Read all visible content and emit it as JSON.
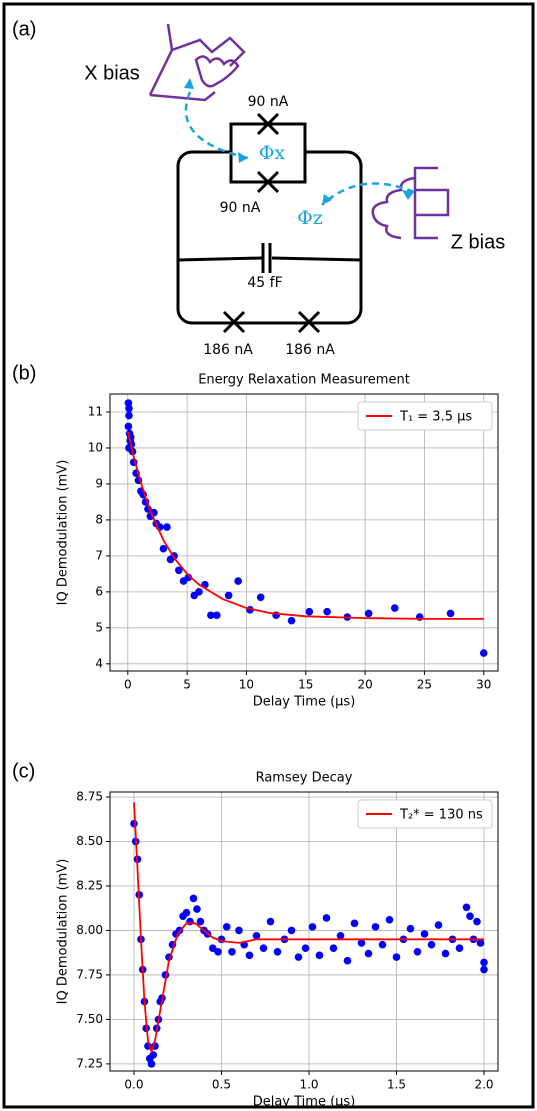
{
  "diagram": {
    "panel_label": "(a)",
    "x_bias": "X bias",
    "z_bias": "Z bias",
    "phi_x": "Φx",
    "phi_z": "Φz",
    "junction_top": "90 nA",
    "junction_bottom": "90 nA",
    "capacitor": "45 fF",
    "junction_left": "186 nA",
    "junction_right": "186 nA"
  },
  "chart_data": [
    {
      "type": "scatter",
      "panel_label": "(b)",
      "title": "Energy Relaxation Measurement",
      "x_label": "Delay Time (μs)",
      "y_label": "IQ Demodulation (mV)",
      "xlim": [
        -1.5,
        31.2
      ],
      "ylim": [
        3.8,
        11.5
      ],
      "xticks": [
        0,
        5,
        10,
        15,
        20,
        25,
        30
      ],
      "yticks": [
        4,
        5,
        6,
        7,
        8,
        9,
        10,
        11
      ],
      "grid": true,
      "legend": "upper right",
      "points": {
        "color": "#0000ff",
        "x": [
          0.05,
          0.1,
          0.1,
          0.05,
          0.15,
          0.2,
          0.1,
          0.25,
          0.3,
          0.4,
          0.5,
          0.7,
          0.9,
          1.1,
          1.3,
          1.5,
          1.7,
          1.9,
          2.2,
          2.4,
          2.7,
          3.0,
          3.3,
          3.6,
          3.9,
          4.3,
          4.7,
          5.1,
          5.6,
          6.0,
          6.5,
          7.0,
          7.5,
          8.5,
          9.3,
          10.3,
          11.2,
          12.5,
          13.8,
          15.3,
          16.8,
          18.5,
          20.3,
          22.5,
          24.6,
          27.2,
          30.0
        ],
        "values": [
          11.25,
          11.1,
          10.9,
          10.6,
          10.4,
          10.2,
          10.0,
          10.3,
          10.1,
          9.9,
          9.6,
          9.3,
          9.1,
          8.8,
          8.7,
          8.5,
          8.3,
          8.1,
          8.2,
          7.9,
          7.8,
          7.2,
          7.8,
          6.9,
          7.0,
          6.6,
          6.3,
          6.4,
          5.9,
          6.0,
          6.2,
          5.35,
          5.35,
          5.9,
          6.3,
          5.5,
          5.85,
          5.35,
          5.2,
          5.45,
          5.45,
          5.3,
          5.4,
          5.55,
          5.3,
          5.4,
          4.3
        ]
      },
      "series": [
        {
          "name": "T₁ = 3.5 μs",
          "color": "#ff0000",
          "x": [
            0,
            0.5,
            1,
            1.5,
            2,
            3,
            4,
            5,
            6,
            8,
            10,
            12,
            15,
            20,
            25,
            30
          ],
          "values": [
            10.45,
            9.75,
            9.15,
            8.62,
            8.17,
            7.44,
            6.9,
            6.5,
            6.2,
            5.8,
            5.55,
            5.41,
            5.32,
            5.27,
            5.25,
            5.25
          ]
        }
      ]
    },
    {
      "type": "scatter",
      "panel_label": "(c)",
      "title": "Ramsey Decay",
      "x_label": "Delay Time (μs)",
      "y_label": "IQ Demodulation (mV)",
      "xlim": [
        -0.137,
        2.08
      ],
      "ylim": [
        7.21,
        8.778
      ],
      "xticks": [
        {
          "value": 0,
          "label": "0.0"
        },
        0.5,
        {
          "value": 1,
          "label": "1.0"
        },
        1.5,
        {
          "value": 2,
          "label": "2.0"
        }
      ],
      "yticks": [
        7.25,
        {
          "value": 7.5,
          "label": "7.50"
        },
        7.75,
        {
          "value": 8,
          "label": "8.00"
        },
        8.25,
        {
          "value": 8.5,
          "label": "8.50"
        },
        8.75
      ],
      "grid": true,
      "legend": "upper right",
      "points": {
        "color": "#0000ff",
        "x": [
          0,
          0.01,
          0.02,
          0.03,
          0.04,
          0.05,
          0.06,
          0.07,
          0.08,
          0.09,
          0.1,
          0.11,
          0.12,
          0.13,
          0.14,
          0.15,
          0.16,
          0.18,
          0.2,
          0.22,
          0.24,
          0.26,
          0.28,
          0.3,
          0.32,
          0.34,
          0.36,
          0.38,
          0.4,
          0.42,
          0.45,
          0.48,
          0.5,
          0.53,
          0.56,
          0.6,
          0.63,
          0.66,
          0.7,
          0.74,
          0.78,
          0.82,
          0.86,
          0.9,
          0.94,
          0.98,
          1.02,
          1.06,
          1.1,
          1.14,
          1.18,
          1.22,
          1.26,
          1.3,
          1.34,
          1.38,
          1.42,
          1.46,
          1.5,
          1.54,
          1.58,
          1.62,
          1.66,
          1.7,
          1.74,
          1.78,
          1.82,
          1.86,
          1.9,
          1.92,
          1.94,
          1.96,
          1.98,
          2.0,
          2.0
        ],
        "values": [
          8.6,
          8.5,
          8.4,
          8.2,
          7.95,
          7.78,
          7.6,
          7.45,
          7.35,
          7.28,
          7.25,
          7.3,
          7.35,
          7.45,
          7.5,
          7.6,
          7.62,
          7.75,
          7.85,
          7.92,
          7.98,
          8.0,
          8.08,
          8.1,
          8.05,
          8.18,
          8.12,
          8.05,
          8.0,
          7.98,
          7.9,
          7.88,
          7.95,
          8.02,
          7.88,
          8.0,
          7.92,
          7.86,
          7.97,
          7.9,
          8.05,
          7.88,
          7.95,
          8.0,
          7.85,
          7.9,
          8.02,
          7.86,
          8.07,
          7.9,
          7.97,
          7.83,
          8.04,
          7.93,
          7.87,
          8.02,
          7.92,
          8.06,
          7.85,
          7.95,
          8.01,
          7.88,
          7.98,
          7.92,
          8.03,
          7.87,
          7.95,
          7.9,
          8.13,
          8.08,
          7.95,
          8.05,
          7.93,
          7.82,
          7.78
        ]
      },
      "series": [
        {
          "name": "T₂* = 130 ns",
          "color": "#ff0000",
          "x": [
            0,
            0.02,
            0.04,
            0.06,
            0.08,
            0.1,
            0.12,
            0.15,
            0.2,
            0.25,
            0.3,
            0.35,
            0.4,
            0.45,
            0.5,
            0.6,
            0.7,
            0.8,
            1.0,
            1.5,
            2.0
          ],
          "values": [
            8.72,
            8.35,
            7.95,
            7.6,
            7.38,
            7.32,
            7.38,
            7.55,
            7.83,
            7.98,
            8.04,
            8.04,
            8.0,
            7.96,
            7.94,
            7.93,
            7.95,
            7.95,
            7.95,
            7.95,
            7.95
          ]
        }
      ]
    }
  ]
}
